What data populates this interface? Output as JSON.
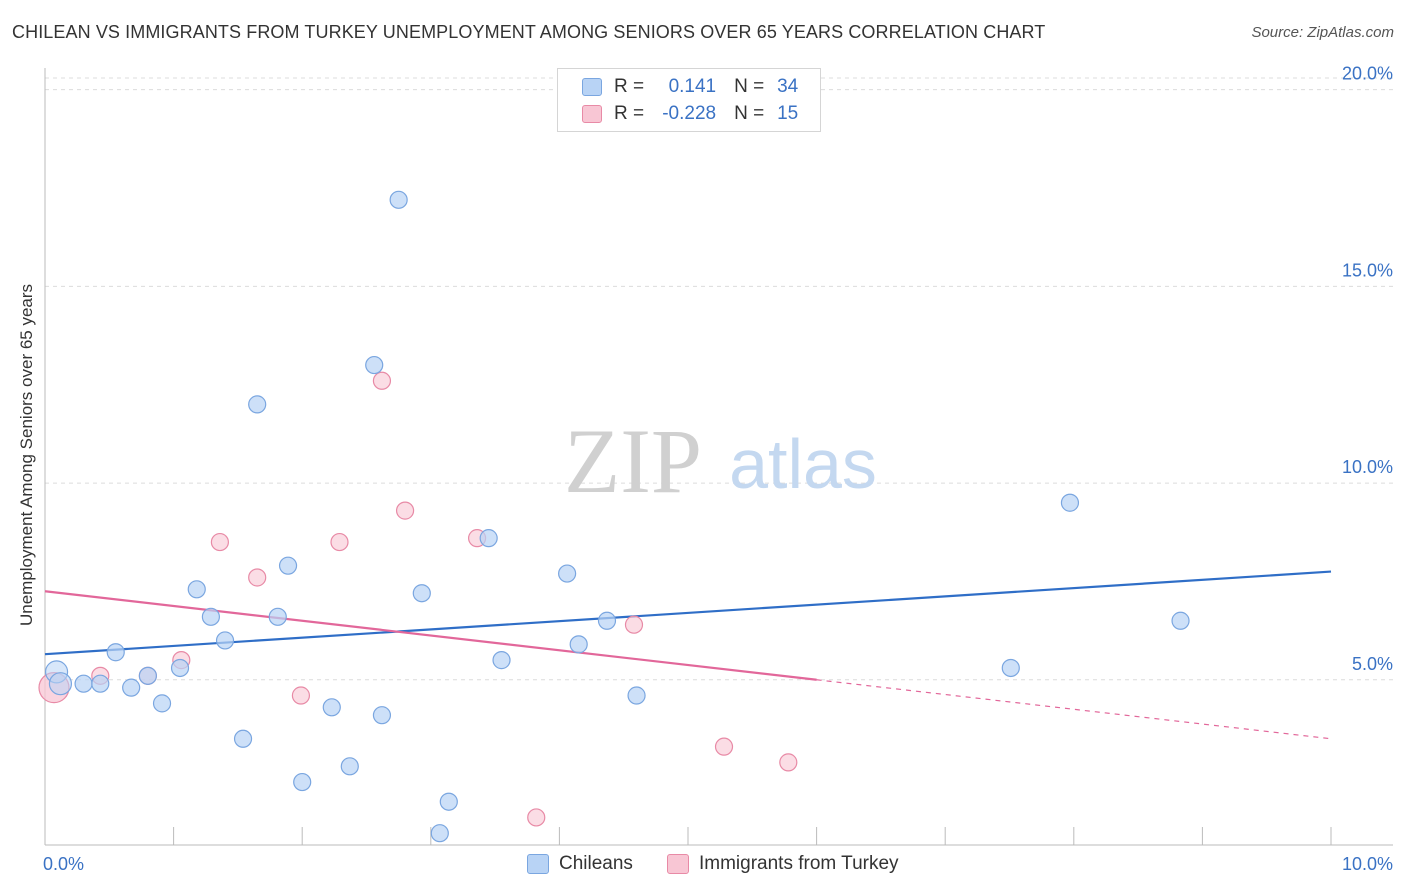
{
  "header": {
    "title": "CHILEAN VS IMMIGRANTS FROM TURKEY UNEMPLOYMENT AMONG SENIORS OVER 65 YEARS CORRELATION CHART",
    "source": "Source: ZipAtlas.com"
  },
  "legend": {
    "r_label": "R =",
    "n_label": "N =",
    "rows": [
      {
        "r": "0.141",
        "n": "34"
      },
      {
        "r": "-0.228",
        "n": "15"
      }
    ]
  },
  "colors": {
    "blue_fill": "#b8d3f5",
    "blue_stroke": "#7aa6e0",
    "blue_line": "#2f6ec7",
    "pink_fill": "#f8c6d4",
    "pink_stroke": "#e88aa6",
    "pink_line": "#e2679a",
    "axis_text": "#3a72c4",
    "grid": "#dcdcdc",
    "watermark_zip": "#d0d0d0",
    "watermark_atlas": "#c4d8f0"
  },
  "watermark": {
    "zip": "ZIP",
    "atlas": "atlas"
  },
  "chart_data": {
    "type": "scatter",
    "title": "CHILEAN VS IMMIGRANTS FROM TURKEY UNEMPLOYMENT AMONG SENIORS OVER 65 YEARS CORRELATION CHART",
    "xlabel": "",
    "ylabel": "Unemployment Among Seniors over 65 years",
    "xlim": [
      0,
      10
    ],
    "ylim": [
      0.8,
      20.5
    ],
    "x_tick_labels": [
      {
        "value": 0,
        "label": "0.0%"
      },
      {
        "value": 10,
        "label": "10.0%"
      }
    ],
    "x_minor_ticks": [
      0,
      1,
      2,
      3,
      4,
      5,
      6,
      7,
      8,
      9,
      10
    ],
    "y_ticks": [
      {
        "value": 5,
        "label": "5.0%"
      },
      {
        "value": 10,
        "label": "10.0%"
      },
      {
        "value": 15,
        "label": "15.0%"
      },
      {
        "value": 20,
        "label": "20.0%"
      }
    ],
    "grid": true,
    "legend_position": "bottom",
    "series": [
      {
        "name": "Chileans",
        "color": "#7aa6e0",
        "x": [
          0.09,
          0.3,
          0.43,
          0.55,
          0.67,
          0.8,
          0.91,
          1.05,
          1.18,
          1.29,
          1.4,
          1.54,
          1.65,
          1.81,
          1.89,
          2.0,
          2.23,
          2.37,
          2.56,
          2.62,
          2.75,
          2.93,
          3.07,
          3.14,
          3.45,
          3.55,
          4.06,
          4.15,
          4.37,
          4.6,
          7.51,
          7.97,
          8.83,
          0.12
        ],
        "y": [
          5.2,
          4.9,
          4.9,
          5.7,
          4.8,
          5.1,
          4.4,
          5.3,
          7.3,
          6.6,
          6.0,
          3.5,
          12.0,
          6.6,
          7.9,
          2.4,
          4.3,
          2.8,
          13.0,
          4.1,
          17.2,
          7.2,
          1.1,
          1.9,
          8.6,
          5.5,
          7.7,
          5.9,
          6.5,
          4.6,
          5.3,
          9.5,
          6.5,
          4.9
        ]
      },
      {
        "name": "Immigrants from Turkey",
        "color": "#e88aa6",
        "x": [
          0.07,
          0.43,
          0.8,
          1.06,
          1.36,
          1.65,
          1.99,
          2.29,
          2.62,
          2.8,
          3.36,
          3.82,
          4.58,
          5.28,
          5.78
        ],
        "y": [
          4.8,
          5.1,
          5.1,
          5.5,
          8.5,
          7.6,
          4.6,
          8.5,
          12.6,
          9.3,
          8.6,
          1.5,
          6.4,
          3.3,
          2.9
        ]
      }
    ],
    "trend_lines": [
      {
        "name": "Chileans",
        "x0": 0,
        "y0": 5.65,
        "x1": 10,
        "y1": 7.75,
        "dashed_from": null
      },
      {
        "name": "Immigrants from Turkey",
        "x0": 0,
        "y0": 7.25,
        "x1": 6.0,
        "y1": 5.0,
        "dashed_from": 6.0,
        "dashed_to_x": 10,
        "dashed_to_y": 3.5
      }
    ]
  }
}
